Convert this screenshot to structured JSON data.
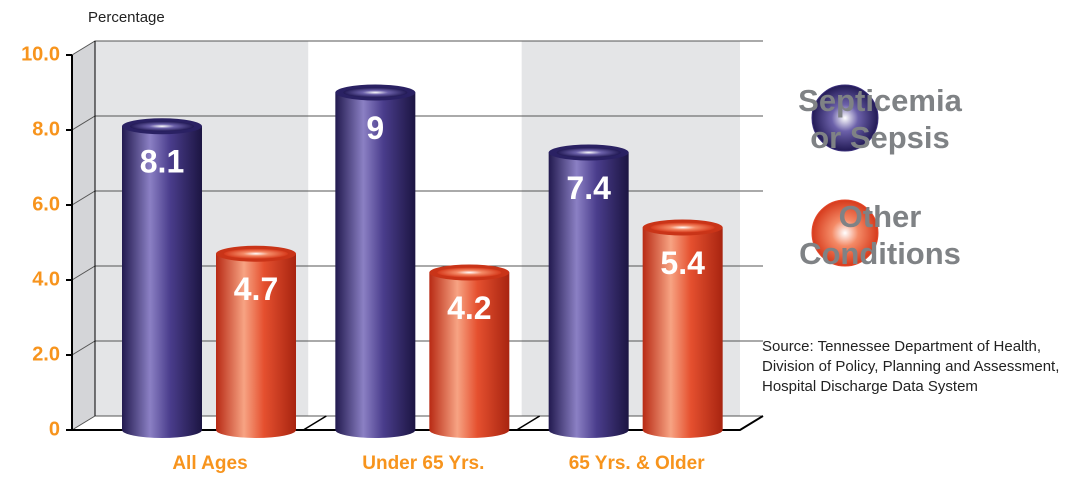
{
  "chart_data": {
    "type": "bar",
    "y_axis_label": "Percentage",
    "categories": [
      "All Ages",
      "Under 65 Yrs.",
      "65 Yrs. & Older"
    ],
    "series": [
      {
        "name": "Septicemia or Sepsis",
        "color": "#3a2f7a",
        "values": [
          8.1,
          9.0,
          7.4
        ]
      },
      {
        "name": "Other Conditions",
        "color": "#e4482a",
        "values": [
          4.7,
          4.2,
          5.4
        ]
      }
    ],
    "ylim": [
      0,
      10
    ],
    "yticks": [
      0,
      {
        "value": 2,
        "label": "2.0"
      },
      {
        "value": 4,
        "label": "4.0"
      },
      {
        "value": 6,
        "label": "6.0"
      },
      {
        "value": 8,
        "label": "8.0"
      },
      {
        "value": 10,
        "label": "10.0"
      }
    ],
    "grid": true,
    "source": "Source: Tennessee Department of Health, Division of Policy, Planning and Assessment, Hospital Discharge Data System"
  }
}
